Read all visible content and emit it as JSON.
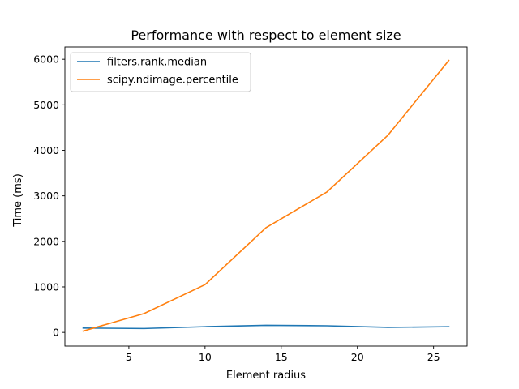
{
  "chart_data": {
    "type": "line",
    "title": "Performance with respect to element size",
    "xlabel": "Element radius",
    "ylabel": "Time (ms)",
    "x": [
      2,
      6,
      10,
      14,
      18,
      22,
      26
    ],
    "xlim": [
      0.8,
      27.2
    ],
    "ylim": [
      -300,
      6270
    ],
    "xticks": [
      5,
      10,
      15,
      20,
      25
    ],
    "yticks": [
      0,
      1000,
      2000,
      3000,
      4000,
      5000,
      6000
    ],
    "grid": false,
    "legend": "top-left",
    "series": [
      {
        "name": "filters.rank.median",
        "color": "#1f77b4",
        "values": [
          95,
          85,
          125,
          155,
          145,
          110,
          125
        ]
      },
      {
        "name": "scipy.ndimage.percentile",
        "color": "#ff7f0e",
        "values": [
          30,
          415,
          1050,
          2300,
          3085,
          4330,
          5975
        ]
      }
    ]
  }
}
